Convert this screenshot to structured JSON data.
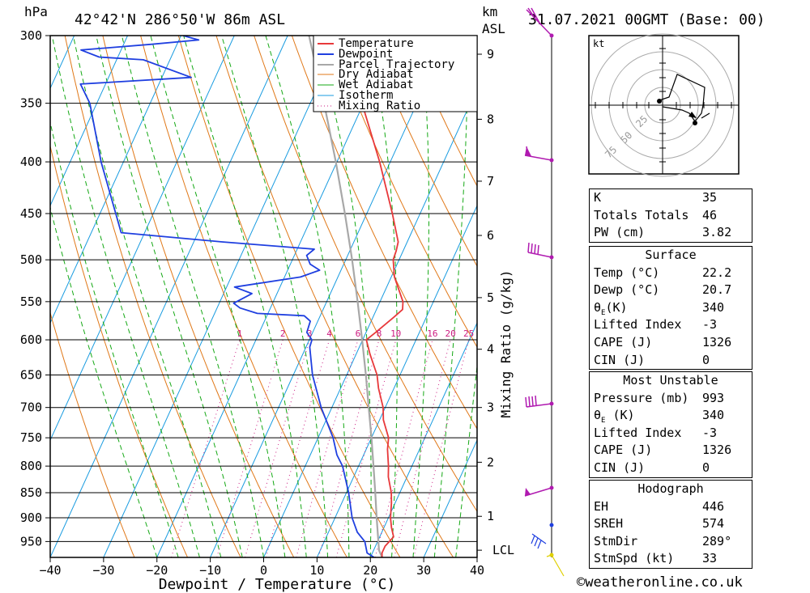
{
  "header": {
    "hpa_unit": "hPa",
    "location": "42°42'N  286°50'W  86m  ASL",
    "km_unit": "km",
    "asl_unit": "ASL",
    "date": "31.07.2021  00GMT  (Base: 00)"
  },
  "chart_data": {
    "type": "line",
    "subtype": "skew-T log-P diagram",
    "xlabel": "Dewpoint / Temperature (°C)",
    "y_right_label": "Mixing Ratio (g/kg)",
    "x_ticks": [
      -40,
      -30,
      -20,
      -10,
      0,
      10,
      20,
      30,
      40
    ],
    "xlim": [
      -40,
      40
    ],
    "pressure_levels": [
      300,
      350,
      400,
      450,
      500,
      550,
      600,
      650,
      700,
      750,
      800,
      850,
      900,
      950
    ],
    "plim": [
      300,
      985
    ],
    "y_scale": "log",
    "km_labels": [
      "1",
      "2",
      "3",
      "4",
      "5",
      "6",
      "7",
      "8",
      "9"
    ],
    "km_pressures": [
      897,
      793,
      700,
      613,
      545,
      473,
      418,
      363,
      313
    ],
    "lcl_label": "LCL",
    "lcl_pressure": 969,
    "mixing_ratio_labels": [
      "1",
      "2",
      "3",
      "4",
      "6",
      "8",
      "10",
      "16",
      "20",
      "25"
    ],
    "mixing_ratio_values": [
      1,
      2,
      3,
      4,
      6,
      8,
      10,
      16,
      20,
      25
    ],
    "legend": [
      "Temperature",
      "Dewpoint",
      "Parcel Trajectory",
      "Dry Adiabat",
      "Wet Adiabat",
      "Isotherm",
      "Mixing Ratio"
    ],
    "legend_placement": "top-right",
    "colors": {
      "temperature": "#e8383a",
      "dewpoint": "#1f3fe0",
      "parcel": "#a8a8a8",
      "dry_adiabat": "#e07818",
      "wet_adiabat": "#14a814",
      "isotherm": "#189be0",
      "mixing_ratio": "#cc1a80"
    },
    "series": [
      {
        "name": "Temperature",
        "points": [
          {
            "p": 985,
            "t": 22.2
          },
          {
            "p": 975,
            "t": 21.8
          },
          {
            "p": 960,
            "t": 21.8
          },
          {
            "p": 940,
            "t": 22.6
          },
          {
            "p": 920,
            "t": 21.4
          },
          {
            "p": 900,
            "t": 20.4
          },
          {
            "p": 870,
            "t": 19.3
          },
          {
            "p": 850,
            "t": 18.4
          },
          {
            "p": 820,
            "t": 16.5
          },
          {
            "p": 800,
            "t": 15.6
          },
          {
            "p": 770,
            "t": 14.0
          },
          {
            "p": 750,
            "t": 13.2
          },
          {
            "p": 720,
            "t": 10.7
          },
          {
            "p": 700,
            "t": 9.6
          },
          {
            "p": 670,
            "t": 7.1
          },
          {
            "p": 650,
            "t": 5.7
          },
          {
            "p": 620,
            "t": 2.6
          },
          {
            "p": 600,
            "t": 0.7
          },
          {
            "p": 590,
            "t": 1.8
          },
          {
            "p": 570,
            "t": 3.9
          },
          {
            "p": 560,
            "t": 4.9
          },
          {
            "p": 550,
            "t": 4.3
          },
          {
            "p": 520,
            "t": 0.6
          },
          {
            "p": 500,
            "t": -1.1
          },
          {
            "p": 490,
            "t": -1.3
          },
          {
            "p": 480,
            "t": -1.7
          },
          {
            "p": 450,
            "t": -5.2
          },
          {
            "p": 400,
            "t": -12.0
          },
          {
            "p": 350,
            "t": -20.3
          },
          {
            "p": 330,
            "t": -23.4
          },
          {
            "p": 310,
            "t": -27.8
          },
          {
            "p": 300,
            "t": -30.1
          }
        ]
      },
      {
        "name": "Dewpoint",
        "points": [
          {
            "p": 985,
            "t": 20.7
          },
          {
            "p": 975,
            "t": 19.0
          },
          {
            "p": 950,
            "t": 17.6
          },
          {
            "p": 930,
            "t": 15.4
          },
          {
            "p": 900,
            "t": 13.2
          },
          {
            "p": 850,
            "t": 10.4
          },
          {
            "p": 800,
            "t": 7.0
          },
          {
            "p": 780,
            "t": 5.0
          },
          {
            "p": 750,
            "t": 2.8
          },
          {
            "p": 700,
            "t": -2.0
          },
          {
            "p": 650,
            "t": -6.4
          },
          {
            "p": 610,
            "t": -9.3
          },
          {
            "p": 600,
            "t": -9.5
          },
          {
            "p": 590,
            "t": -11.1
          },
          {
            "p": 575,
            "t": -11.4
          },
          {
            "p": 568,
            "t": -13.0
          },
          {
            "p": 565,
            "t": -22.0
          },
          {
            "p": 558,
            "t": -25.7
          },
          {
            "p": 552,
            "t": -27.3
          },
          {
            "p": 540,
            "t": -24.7
          },
          {
            "p": 532,
            "t": -28.5
          },
          {
            "p": 520,
            "t": -17.0
          },
          {
            "p": 512,
            "t": -14.0
          },
          {
            "p": 505,
            "t": -16.3
          },
          {
            "p": 495,
            "t": -17.7
          },
          {
            "p": 488,
            "t": -16.8
          },
          {
            "p": 480,
            "t": -34.7
          },
          {
            "p": 470,
            "t": -54.4
          },
          {
            "p": 400,
            "t": -64.2
          },
          {
            "p": 350,
            "t": -71.3
          },
          {
            "p": 335,
            "t": -74.7
          },
          {
            "p": 330,
            "t": -54.5
          },
          {
            "p": 317,
            "t": -65.0
          },
          {
            "p": 315,
            "t": -73.5
          },
          {
            "p": 310,
            "t": -77.5
          },
          {
            "p": 306,
            "t": -64.7
          },
          {
            "p": 303,
            "t": -56.3
          },
          {
            "p": 300,
            "t": -59.6
          }
        ]
      },
      {
        "name": "Parcel Trajectory",
        "points": [
          {
            "p": 985,
            "t": 22.2
          },
          {
            "p": 969,
            "t": 21.0
          },
          {
            "p": 900,
            "t": 17.8
          },
          {
            "p": 850,
            "t": 15.4
          },
          {
            "p": 800,
            "t": 12.8
          },
          {
            "p": 750,
            "t": 10.0
          },
          {
            "p": 700,
            "t": 6.9
          },
          {
            "p": 650,
            "t": 3.6
          },
          {
            "p": 600,
            "t": -0.1
          },
          {
            "p": 550,
            "t": -4.2
          },
          {
            "p": 500,
            "t": -8.8
          },
          {
            "p": 450,
            "t": -14.1
          },
          {
            "p": 400,
            "t": -20.2
          },
          {
            "p": 350,
            "t": -27.4
          },
          {
            "p": 300,
            "t": -36.0
          }
        ]
      }
    ],
    "wind_barb_pressures": [
      300,
      400,
      500,
      700,
      850,
      925,
      950,
      985
    ]
  },
  "hodograph": {
    "unit": "kt",
    "ring_labels": [
      "25",
      "50",
      "75"
    ]
  },
  "indices": {
    "rows": [
      {
        "label": "K",
        "value": "35"
      },
      {
        "label": "Totals Totals",
        "value": "46"
      },
      {
        "label": "PW (cm)",
        "value": "3.82"
      }
    ]
  },
  "surface": {
    "title": "Surface",
    "temp_label": "Temp (°C)",
    "temp_value": "22.2",
    "dewp_label": "Dewp (°C)",
    "dewp_value": "20.7",
    "theta_label": "θ",
    "theta_sub": "E",
    "theta_unit": "(K)",
    "theta_value": "340",
    "li_label": "Lifted Index",
    "li_value": "-3",
    "cape_label": "CAPE (J)",
    "cape_value": "1326",
    "cin_label": "CIN (J)",
    "cin_value": "0"
  },
  "most_unstable": {
    "title": "Most Unstable",
    "pressure_label": "Pressure (mb)",
    "pressure_value": "993",
    "theta_label": "θ",
    "theta_sub": "E",
    "theta_unit": " (K)",
    "theta_value": "340",
    "li_label": "Lifted Index",
    "li_value": "-3",
    "cape_label": "CAPE (J)",
    "cape_value": "1326",
    "cin_label": "CIN (J)",
    "cin_value": "0"
  },
  "hodograph_stats": {
    "title": "Hodograph",
    "eh_label": "EH",
    "eh_value": "446",
    "sreh_label": "SREH",
    "sreh_value": "574",
    "stmdir_label": "StmDir",
    "stmdir_value": "289°",
    "stmspd_label": "StmSpd (kt)",
    "stmspd_value": "33"
  },
  "footer": {
    "copyright_symbol": "©",
    "site": "weatheronline.co.uk"
  }
}
